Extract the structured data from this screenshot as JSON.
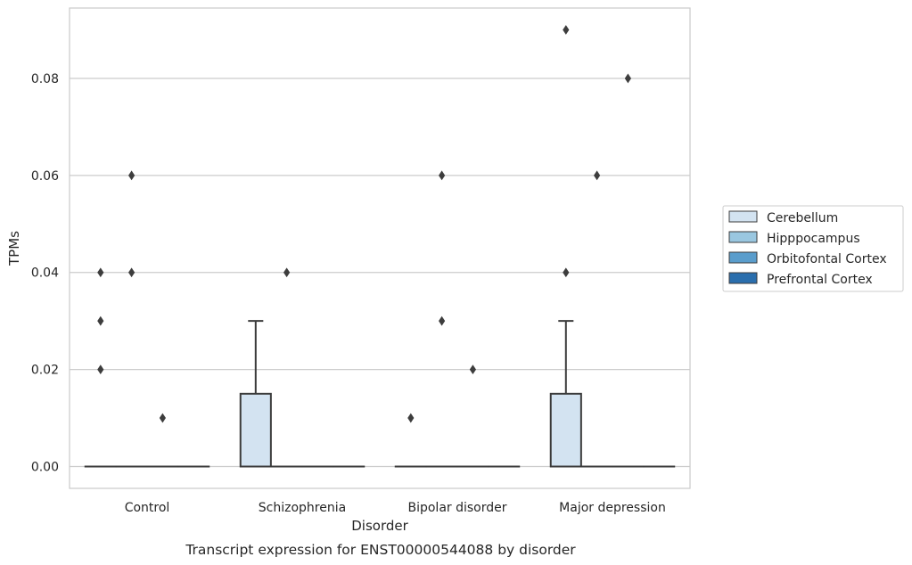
{
  "chart_data": {
    "type": "box",
    "xlabel": "Disorder",
    "ylabel": "TPMs",
    "caption": "Transcript expression for ENST00000544088 by disorder",
    "categories": [
      "Control",
      "Schizophrenia",
      "Bipolar disorder",
      "Major depression"
    ],
    "ylim": [
      -0.0045,
      0.0945
    ],
    "yticks": [
      0.0,
      0.02,
      0.04,
      0.06,
      0.08
    ],
    "ytick_labels": [
      "0.00",
      "0.02",
      "0.04",
      "0.06",
      "0.08"
    ],
    "grid": true,
    "legend_position": "right",
    "series": [
      {
        "name": "Cerebellum",
        "color": "#d3e3f1"
      },
      {
        "name": "Hipppocampus",
        "color": "#9ac7e0"
      },
      {
        "name": "Orbitofontal Cortex",
        "color": "#5a9dcc"
      },
      {
        "name": "Prefrontal Cortex",
        "color": "#2a6ead"
      }
    ],
    "boxes": [
      {
        "category": "Control",
        "series": "Cerebellum",
        "q1": 0,
        "median": 0,
        "q3": 0,
        "whisker_low": 0,
        "whisker_high": 0,
        "outliers": [
          0.02,
          0.03,
          0.04
        ]
      },
      {
        "category": "Control",
        "series": "Hipppocampus",
        "q1": 0,
        "median": 0,
        "q3": 0,
        "whisker_low": 0,
        "whisker_high": 0,
        "outliers": [
          0.04,
          0.06
        ]
      },
      {
        "category": "Control",
        "series": "Orbitofontal Cortex",
        "q1": 0,
        "median": 0,
        "q3": 0,
        "whisker_low": 0,
        "whisker_high": 0,
        "outliers": [
          0.01
        ]
      },
      {
        "category": "Control",
        "series": "Prefrontal Cortex",
        "q1": 0,
        "median": 0,
        "q3": 0,
        "whisker_low": 0,
        "whisker_high": 0,
        "outliers": []
      },
      {
        "category": "Schizophrenia",
        "series": "Cerebellum",
        "q1": 0,
        "median": 0,
        "q3": 0.015,
        "whisker_low": 0,
        "whisker_high": 0.03,
        "outliers": []
      },
      {
        "category": "Schizophrenia",
        "series": "Hipppocampus",
        "q1": 0,
        "median": 0,
        "q3": 0,
        "whisker_low": 0,
        "whisker_high": 0,
        "outliers": [
          0.04
        ]
      },
      {
        "category": "Schizophrenia",
        "series": "Orbitofontal Cortex",
        "q1": 0,
        "median": 0,
        "q3": 0,
        "whisker_low": 0,
        "whisker_high": 0,
        "outliers": []
      },
      {
        "category": "Schizophrenia",
        "series": "Prefrontal Cortex",
        "q1": 0,
        "median": 0,
        "q3": 0,
        "whisker_low": 0,
        "whisker_high": 0,
        "outliers": []
      },
      {
        "category": "Bipolar disorder",
        "series": "Cerebellum",
        "q1": 0,
        "median": 0,
        "q3": 0,
        "whisker_low": 0,
        "whisker_high": 0,
        "outliers": [
          0.01
        ]
      },
      {
        "category": "Bipolar disorder",
        "series": "Hipppocampus",
        "q1": 0,
        "median": 0,
        "q3": 0,
        "whisker_low": 0,
        "whisker_high": 0,
        "outliers": [
          0.03,
          0.06
        ]
      },
      {
        "category": "Bipolar disorder",
        "series": "Orbitofontal Cortex",
        "q1": 0,
        "median": 0,
        "q3": 0,
        "whisker_low": 0,
        "whisker_high": 0,
        "outliers": [
          0.02
        ]
      },
      {
        "category": "Bipolar disorder",
        "series": "Prefrontal Cortex",
        "q1": 0,
        "median": 0,
        "q3": 0,
        "whisker_low": 0,
        "whisker_high": 0,
        "outliers": []
      },
      {
        "category": "Major depression",
        "series": "Cerebellum",
        "q1": 0,
        "median": 0,
        "q3": 0.015,
        "whisker_low": 0,
        "whisker_high": 0.03,
        "outliers": [
          0.04,
          0.09
        ]
      },
      {
        "category": "Major depression",
        "series": "Hipppocampus",
        "q1": 0,
        "median": 0,
        "q3": 0,
        "whisker_low": 0,
        "whisker_high": 0,
        "outliers": [
          0.06
        ]
      },
      {
        "category": "Major depression",
        "series": "Orbitofontal Cortex",
        "q1": 0,
        "median": 0,
        "q3": 0,
        "whisker_low": 0,
        "whisker_high": 0,
        "outliers": [
          0.08
        ]
      },
      {
        "category": "Major depression",
        "series": "Prefrontal Cortex",
        "q1": 0,
        "median": 0,
        "q3": 0,
        "whisker_low": 0,
        "whisker_high": 0,
        "outliers": []
      }
    ]
  }
}
